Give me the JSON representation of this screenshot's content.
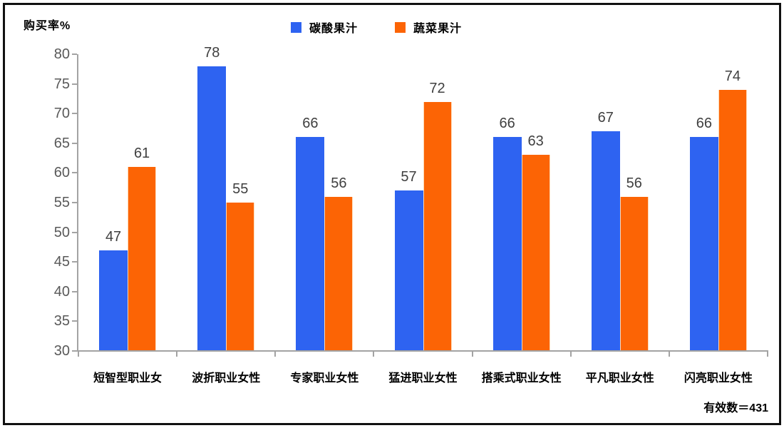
{
  "chart_data": {
    "type": "bar",
    "title": "",
    "ylabel": "购买率%",
    "xlabel": "",
    "categories": [
      "短智型职业女",
      "波折职业女性",
      "专家职业女性",
      "猛进职业女性",
      "搭乘式职业女性",
      "平凡职业女性",
      "闪亮职业女性"
    ],
    "series": [
      {
        "name": "碳酸果汁",
        "color": "#2e63f1",
        "values": [
          47,
          78,
          66,
          57,
          66,
          67,
          66
        ]
      },
      {
        "name": "蔬菜果汁",
        "color": "#fc6405",
        "values": [
          61,
          55,
          56,
          72,
          63,
          56,
          74
        ]
      }
    ],
    "ylim": [
      30,
      80
    ],
    "ytick_step": 5,
    "grid": false,
    "legend_position": "top",
    "annotation": "有效数＝431"
  },
  "colors": {
    "axis": "#a3a3a3",
    "tick_label": "#595959",
    "value_label": "#3f3f3f",
    "frame_border": "#111111"
  }
}
